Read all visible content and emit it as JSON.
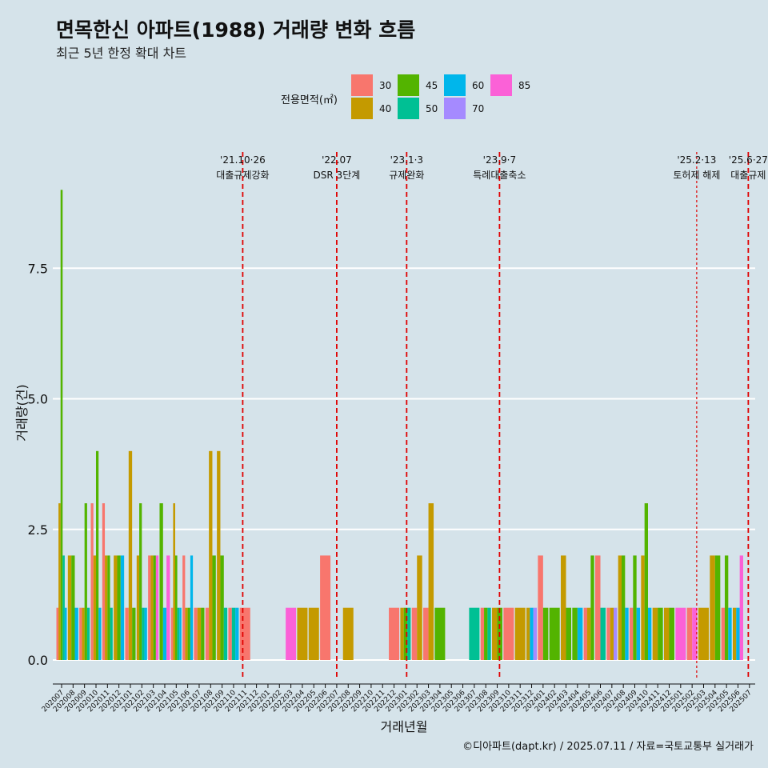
{
  "title": "면목한신 아파트(1988) 거래량 변화 흐름",
  "subtitle": "최근 5년 한정 확대 차트",
  "caption": "©디아파트(dapt.kr) / 2025.07.11 / 자료=국토교통부 실거래가",
  "colors": {
    "background": "#d5e3ea",
    "grid": "#ffffff",
    "event_line": "#e00000",
    "s30": "#f8766d",
    "s40": "#c49a00",
    "s45": "#53b400",
    "s50": "#00c094",
    "s60": "#00b6eb",
    "s70": "#a58aff",
    "s85": "#fb61d7"
  },
  "chart_data": {
    "type": "bar",
    "title": "면목한신 아파트(1988) 거래량 변화 흐름",
    "subtitle": "최근 5년 한정 확대 차트",
    "xlabel": "거래년월",
    "ylabel": "거래량(건)",
    "ylim": [
      0,
      9
    ],
    "yticks": [
      0.0,
      2.5,
      5.0,
      7.5
    ],
    "ytick_labels": [
      "0.0",
      "2.5",
      "5.0",
      "7.5"
    ],
    "legend_title": "전용면적(㎡)",
    "legend_position": "top",
    "series_names": [
      "30",
      "40",
      "45",
      "50",
      "60",
      "70",
      "85"
    ],
    "legend_order": [
      "30",
      "40",
      "45",
      "50",
      "60",
      "70",
      "85"
    ],
    "categories": [
      "202007",
      "202008",
      "202009",
      "202010",
      "202011",
      "202012",
      "202101",
      "202102",
      "202103",
      "202104",
      "202105",
      "202106",
      "202107",
      "202108",
      "202109",
      "202110",
      "202111",
      "202112",
      "202201",
      "202202",
      "202203",
      "202204",
      "202205",
      "202206",
      "202207",
      "202208",
      "202209",
      "202210",
      "202211",
      "202212",
      "202301",
      "202302",
      "202303",
      "202304",
      "202305",
      "202306",
      "202307",
      "202308",
      "202309",
      "202310",
      "202311",
      "202312",
      "202401",
      "202402",
      "202403",
      "202404",
      "202405",
      "202406",
      "202407",
      "202408",
      "202409",
      "202410",
      "202411",
      "202412",
      "202501",
      "202502",
      "202503",
      "202504",
      "202505",
      "202506",
      "202507"
    ],
    "bars": [
      {
        "month": "202007",
        "values": {
          "30": 1,
          "40": 3,
          "45": 9,
          "50": 2,
          "60": 1
        }
      },
      {
        "month": "202008",
        "values": {
          "40": 2,
          "45": 2,
          "60": 1
        }
      },
      {
        "month": "202009",
        "values": {
          "30": 1,
          "40": 1,
          "45": 3,
          "50": 1
        }
      },
      {
        "month": "202010",
        "values": {
          "30": 3,
          "40": 2,
          "45": 4,
          "60": 1
        }
      },
      {
        "month": "202011",
        "values": {
          "30": 3,
          "40": 2,
          "45": 2,
          "50": 1
        }
      },
      {
        "month": "202012",
        "values": {
          "40": 2,
          "45": 2,
          "60": 2
        }
      },
      {
        "month": "202101",
        "values": {
          "30": 1,
          "40": 4,
          "45": 1
        }
      },
      {
        "month": "202102",
        "values": {
          "40": 2,
          "45": 3,
          "50": 1,
          "60": 1
        }
      },
      {
        "month": "202103",
        "values": {
          "30": 2,
          "40": 2,
          "45": 2,
          "85": 2
        }
      },
      {
        "month": "202104",
        "values": {
          "45": 3,
          "60": 1,
          "85": 2
        }
      },
      {
        "month": "202105",
        "values": {
          "30": 1,
          "40": 3,
          "45": 2,
          "50": 1,
          "60": 1
        }
      },
      {
        "month": "202106",
        "values": {
          "30": 2,
          "40": 1,
          "45": 1,
          "60": 2
        }
      },
      {
        "month": "202107",
        "values": {
          "30": 1,
          "40": 1,
          "45": 1
        }
      },
      {
        "month": "202108",
        "values": {
          "30": 1,
          "40": 4,
          "45": 2
        }
      },
      {
        "month": "202109",
        "values": {
          "40": 4,
          "45": 2,
          "50": 1
        }
      },
      {
        "month": "202110",
        "values": {
          "30": 1,
          "50": 1,
          "60": 1
        }
      },
      {
        "month": "202111",
        "values": {
          "30": 1
        }
      },
      {
        "month": "202112",
        "values": {}
      },
      {
        "month": "202201",
        "values": {}
      },
      {
        "month": "202202",
        "values": {}
      },
      {
        "month": "202203",
        "values": {
          "85": 1
        }
      },
      {
        "month": "202204",
        "values": {
          "40": 1
        }
      },
      {
        "month": "202205",
        "values": {
          "40": 1
        }
      },
      {
        "month": "202206",
        "values": {
          "30": 2
        }
      },
      {
        "month": "202207",
        "values": {}
      },
      {
        "month": "202208",
        "values": {
          "40": 1
        }
      },
      {
        "month": "202209",
        "values": {}
      },
      {
        "month": "202210",
        "values": {}
      },
      {
        "month": "202211",
        "values": {}
      },
      {
        "month": "202212",
        "values": {
          "30": 1
        }
      },
      {
        "month": "202301",
        "values": {
          "40": 1,
          "45": 1,
          "50": 1
        }
      },
      {
        "month": "202302",
        "values": {
          "30": 1,
          "40": 2
        }
      },
      {
        "month": "202303",
        "values": {
          "30": 1,
          "40": 3
        }
      },
      {
        "month": "202304",
        "values": {
          "45": 1
        }
      },
      {
        "month": "202305",
        "values": {}
      },
      {
        "month": "202306",
        "values": {}
      },
      {
        "month": "202307",
        "values": {
          "50": 1
        }
      },
      {
        "month": "202308",
        "values": {
          "30": 1,
          "45": 1,
          "50": 1
        }
      },
      {
        "month": "202309",
        "values": {
          "40": 1,
          "45": 1
        }
      },
      {
        "month": "202310",
        "values": {
          "30": 1
        }
      },
      {
        "month": "202311",
        "values": {
          "40": 1
        }
      },
      {
        "month": "202312",
        "values": {
          "40": 1,
          "60": 1,
          "70": 1
        }
      },
      {
        "month": "202401",
        "values": {
          "30": 2,
          "45": 1
        }
      },
      {
        "month": "202402",
        "values": {
          "45": 1
        }
      },
      {
        "month": "202403",
        "values": {
          "40": 2,
          "45": 1
        }
      },
      {
        "month": "202404",
        "values": {
          "45": 1,
          "60": 1
        }
      },
      {
        "month": "202405",
        "values": {
          "30": 1,
          "40": 1,
          "45": 2
        }
      },
      {
        "month": "202406",
        "values": {
          "30": 2,
          "50": 1
        }
      },
      {
        "month": "202407",
        "values": {
          "30": 1,
          "40": 1,
          "70": 1
        }
      },
      {
        "month": "202408",
        "values": {
          "40": 2,
          "45": 2,
          "60": 1
        }
      },
      {
        "month": "202409",
        "values": {
          "30": 1,
          "45": 2,
          "60": 1
        }
      },
      {
        "month": "202410",
        "values": {
          "40": 2,
          "45": 3,
          "60": 1
        }
      },
      {
        "month": "202411",
        "values": {
          "40": 1,
          "45": 1
        }
      },
      {
        "month": "202412",
        "values": {
          "40": 1,
          "45": 1
        }
      },
      {
        "month": "202501",
        "values": {
          "85": 1
        }
      },
      {
        "month": "202502",
        "values": {
          "30": 1,
          "85": 1
        }
      },
      {
        "month": "202503",
        "values": {
          "40": 1
        }
      },
      {
        "month": "202504",
        "values": {
          "40": 2,
          "45": 2
        }
      },
      {
        "month": "202505",
        "values": {
          "30": 1,
          "45": 2,
          "60": 1
        }
      },
      {
        "month": "202506",
        "values": {
          "40": 1,
          "60": 1,
          "85": 2
        }
      },
      {
        "month": "202507",
        "values": {}
      }
    ],
    "events": [
      {
        "month_value": 15.8,
        "date": "'21.10·26",
        "label": "대출규제강화",
        "dashed_style": "long"
      },
      {
        "month_value": 24.0,
        "date": "'22.07",
        "label": "DSR 3단계",
        "dashed_style": "long"
      },
      {
        "month_value": 30.1,
        "date": "'23.1·3",
        "label": "규제완화",
        "dashed_style": "long"
      },
      {
        "month_value": 38.2,
        "date": "'23.9·7",
        "label": "특례대출축소",
        "dashed_style": "long"
      },
      {
        "month_value": 55.4,
        "date": "'25.2·13",
        "label": "토허제 해제",
        "dashed_style": "short"
      },
      {
        "month_value": 59.9,
        "date": "'25.6·27",
        "label": "대출규제",
        "dashed_style": "long"
      }
    ]
  }
}
